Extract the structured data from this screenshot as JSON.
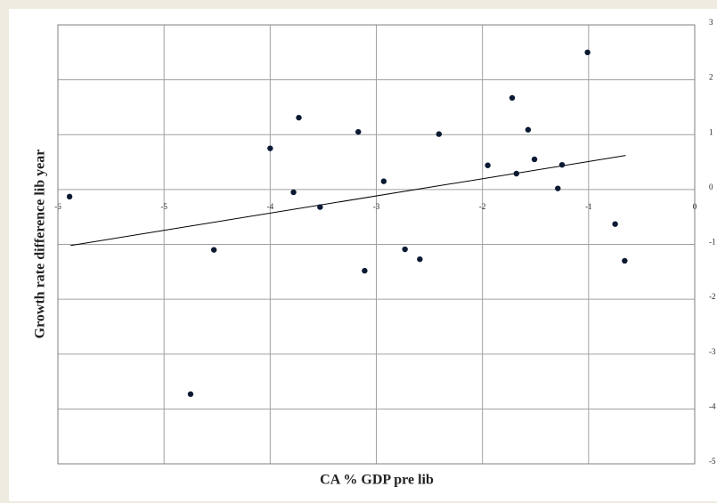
{
  "chart_data": {
    "type": "scatter",
    "x_label": "CA % GDP pre lib",
    "y_label": "Growth rate difference lib year",
    "x": [
      -5.89,
      -4.75,
      -4.53,
      -4.0,
      -3.78,
      -3.73,
      -3.53,
      -3.17,
      -3.11,
      -2.93,
      -2.73,
      -2.59,
      -2.41,
      -1.95,
      -1.72,
      -1.68,
      -1.57,
      -1.51,
      -1.29,
      -1.25,
      -1.01,
      -0.75,
      -0.66
    ],
    "y": [
      -0.13,
      -3.73,
      -1.1,
      0.75,
      -0.05,
      1.31,
      -0.32,
      1.05,
      -1.48,
      0.15,
      -1.09,
      -1.27,
      1.01,
      0.44,
      1.67,
      0.29,
      1.09,
      0.55,
      0.02,
      0.45,
      2.5,
      -0.63,
      -1.3
    ],
    "color": "#0b1a33",
    "trendline": {
      "x": [
        -5.88,
        -0.65
      ],
      "y": [
        -1.02,
        0.62
      ],
      "color": "#000000"
    },
    "xlim": [
      -6,
      0
    ],
    "ylim": [
      -5,
      3
    ],
    "xticks": [
      -6,
      -5,
      -4,
      -3,
      -2,
      -1,
      0
    ],
    "yticks": [
      3,
      2,
      1,
      0,
      -1,
      -2,
      -3,
      -4,
      -5
    ],
    "grid": true
  }
}
